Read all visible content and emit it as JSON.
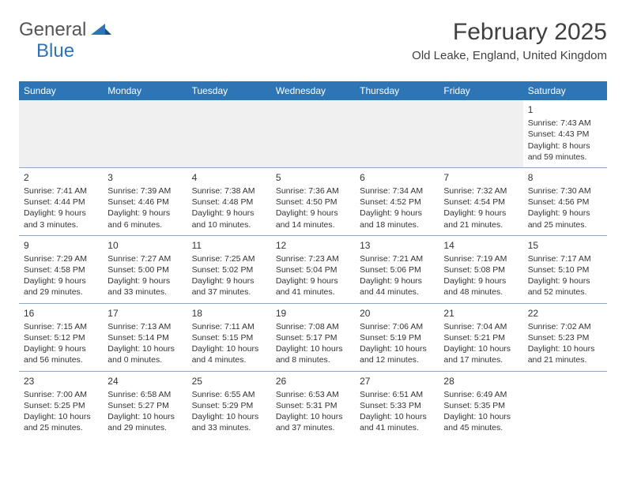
{
  "logo": {
    "general": "General",
    "blue": "Blue"
  },
  "title": "February 2025",
  "location": "Old Leake, England, United Kingdom",
  "header_bg": "#2e75b6",
  "header_fg": "#ffffff",
  "grid_border": "#8ea9c4",
  "day_names": [
    "Sunday",
    "Monday",
    "Tuesday",
    "Wednesday",
    "Thursday",
    "Friday",
    "Saturday"
  ],
  "weeks": [
    [
      null,
      null,
      null,
      null,
      null,
      null,
      {
        "n": "1",
        "sr": "7:43 AM",
        "ss": "4:43 PM",
        "dl": "8 hours and 59 minutes."
      }
    ],
    [
      {
        "n": "2",
        "sr": "7:41 AM",
        "ss": "4:44 PM",
        "dl": "9 hours and 3 minutes."
      },
      {
        "n": "3",
        "sr": "7:39 AM",
        "ss": "4:46 PM",
        "dl": "9 hours and 6 minutes."
      },
      {
        "n": "4",
        "sr": "7:38 AM",
        "ss": "4:48 PM",
        "dl": "9 hours and 10 minutes."
      },
      {
        "n": "5",
        "sr": "7:36 AM",
        "ss": "4:50 PM",
        "dl": "9 hours and 14 minutes."
      },
      {
        "n": "6",
        "sr": "7:34 AM",
        "ss": "4:52 PM",
        "dl": "9 hours and 18 minutes."
      },
      {
        "n": "7",
        "sr": "7:32 AM",
        "ss": "4:54 PM",
        "dl": "9 hours and 21 minutes."
      },
      {
        "n": "8",
        "sr": "7:30 AM",
        "ss": "4:56 PM",
        "dl": "9 hours and 25 minutes."
      }
    ],
    [
      {
        "n": "9",
        "sr": "7:29 AM",
        "ss": "4:58 PM",
        "dl": "9 hours and 29 minutes."
      },
      {
        "n": "10",
        "sr": "7:27 AM",
        "ss": "5:00 PM",
        "dl": "9 hours and 33 minutes."
      },
      {
        "n": "11",
        "sr": "7:25 AM",
        "ss": "5:02 PM",
        "dl": "9 hours and 37 minutes."
      },
      {
        "n": "12",
        "sr": "7:23 AM",
        "ss": "5:04 PM",
        "dl": "9 hours and 41 minutes."
      },
      {
        "n": "13",
        "sr": "7:21 AM",
        "ss": "5:06 PM",
        "dl": "9 hours and 44 minutes."
      },
      {
        "n": "14",
        "sr": "7:19 AM",
        "ss": "5:08 PM",
        "dl": "9 hours and 48 minutes."
      },
      {
        "n": "15",
        "sr": "7:17 AM",
        "ss": "5:10 PM",
        "dl": "9 hours and 52 minutes."
      }
    ],
    [
      {
        "n": "16",
        "sr": "7:15 AM",
        "ss": "5:12 PM",
        "dl": "9 hours and 56 minutes."
      },
      {
        "n": "17",
        "sr": "7:13 AM",
        "ss": "5:14 PM",
        "dl": "10 hours and 0 minutes."
      },
      {
        "n": "18",
        "sr": "7:11 AM",
        "ss": "5:15 PM",
        "dl": "10 hours and 4 minutes."
      },
      {
        "n": "19",
        "sr": "7:08 AM",
        "ss": "5:17 PM",
        "dl": "10 hours and 8 minutes."
      },
      {
        "n": "20",
        "sr": "7:06 AM",
        "ss": "5:19 PM",
        "dl": "10 hours and 12 minutes."
      },
      {
        "n": "21",
        "sr": "7:04 AM",
        "ss": "5:21 PM",
        "dl": "10 hours and 17 minutes."
      },
      {
        "n": "22",
        "sr": "7:02 AM",
        "ss": "5:23 PM",
        "dl": "10 hours and 21 minutes."
      }
    ],
    [
      {
        "n": "23",
        "sr": "7:00 AM",
        "ss": "5:25 PM",
        "dl": "10 hours and 25 minutes."
      },
      {
        "n": "24",
        "sr": "6:58 AM",
        "ss": "5:27 PM",
        "dl": "10 hours and 29 minutes."
      },
      {
        "n": "25",
        "sr": "6:55 AM",
        "ss": "5:29 PM",
        "dl": "10 hours and 33 minutes."
      },
      {
        "n": "26",
        "sr": "6:53 AM",
        "ss": "5:31 PM",
        "dl": "10 hours and 37 minutes."
      },
      {
        "n": "27",
        "sr": "6:51 AM",
        "ss": "5:33 PM",
        "dl": "10 hours and 41 minutes."
      },
      {
        "n": "28",
        "sr": "6:49 AM",
        "ss": "5:35 PM",
        "dl": "10 hours and 45 minutes."
      },
      null
    ]
  ],
  "labels": {
    "sunrise": "Sunrise:",
    "sunset": "Sunset:",
    "daylight": "Daylight:"
  }
}
